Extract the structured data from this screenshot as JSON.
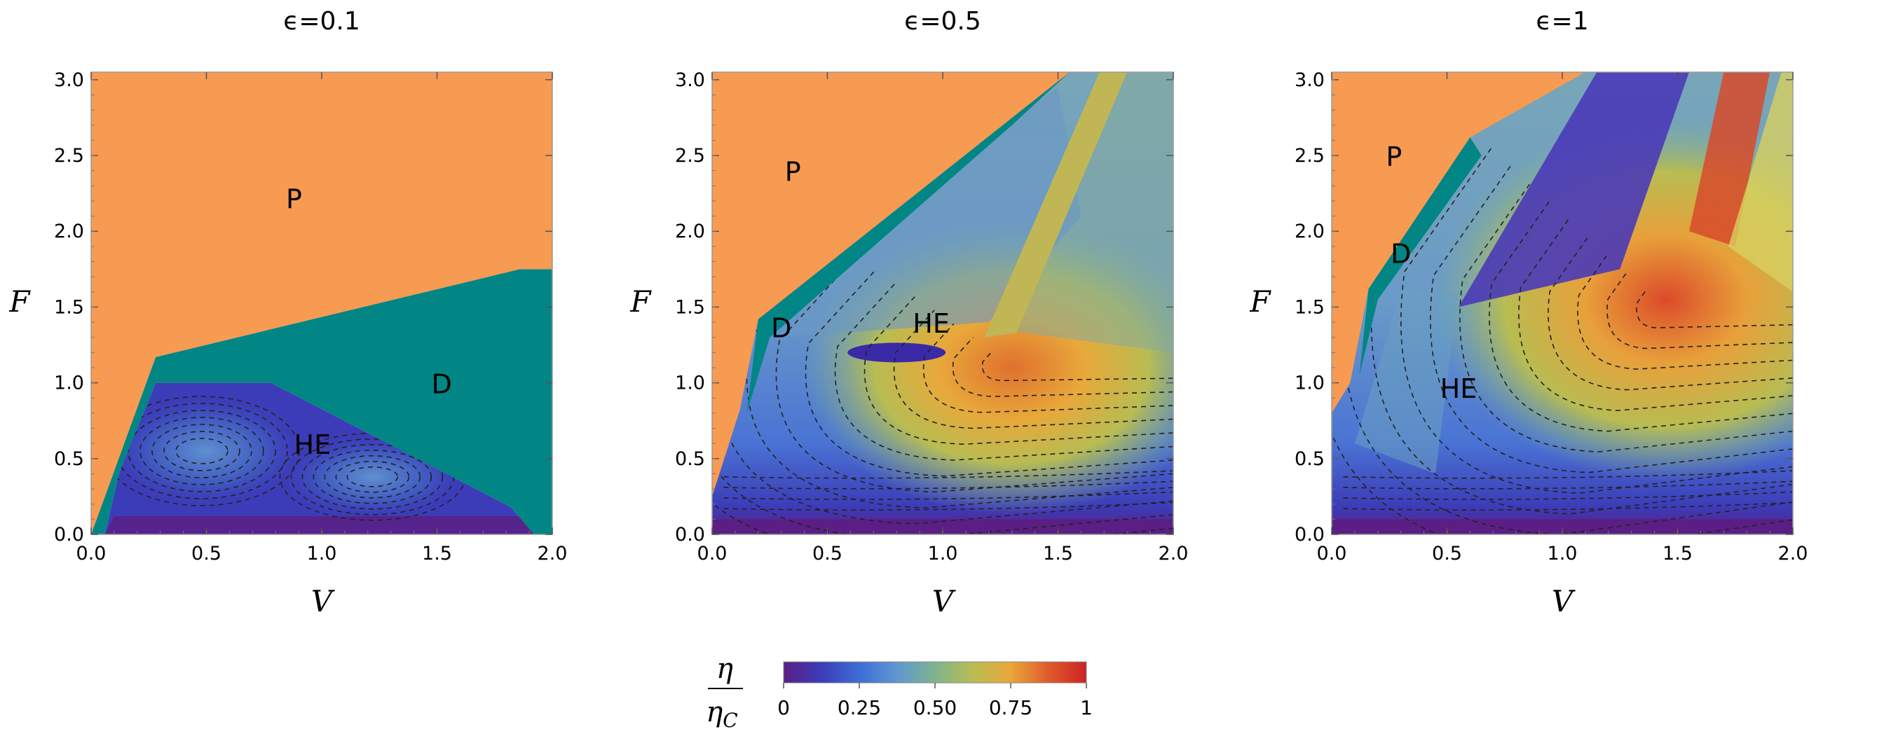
{
  "chart_data": [
    {
      "type": "heatmap",
      "title": "ϵ=0.1",
      "xlabel": "V",
      "ylabel": "F",
      "xlim": [
        0,
        2
      ],
      "ylim": [
        0,
        3.05
      ],
      "x_ticks": [
        "0.0",
        "0.5",
        "1.0",
        "1.5",
        "2.0"
      ],
      "y_ticks": [
        "0.0",
        "0.5",
        "1.0",
        "1.5",
        "2.0",
        "2.5",
        "3.0"
      ],
      "contour_lines": "dashed",
      "regions": [
        {
          "label": "P",
          "color": "#f79a52",
          "label_at": [
            0.88,
            2.2
          ],
          "boundary": [
            [
              0,
              0
            ],
            [
              0,
              3.05
            ],
            [
              2,
              3.05
            ],
            [
              2,
              1.75
            ],
            [
              1.86,
              1.75
            ],
            [
              0.28,
              1.17
            ],
            [
              0,
              0
            ]
          ]
        },
        {
          "label": "D",
          "color": "#028585",
          "label_at": [
            1.52,
            0.98
          ],
          "boundary": [
            [
              0,
              0
            ],
            [
              0.28,
              1.17
            ],
            [
              1.86,
              1.75
            ],
            [
              2,
              1.75
            ],
            [
              2,
              0
            ],
            [
              1.92,
              0
            ],
            [
              1.82,
              0.18
            ],
            [
              0.78,
              1.0
            ],
            [
              0.28,
              1.0
            ],
            [
              0.12,
              0.4
            ],
            [
              0.06,
              0
            ]
          ]
        },
        {
          "label": "HE",
          "label_at": [
            0.96,
            0.58
          ],
          "boundary": [
            [
              0.06,
              0
            ],
            [
              0.12,
              0.4
            ],
            [
              0.28,
              1.0
            ],
            [
              0.78,
              1.0
            ],
            [
              1.82,
              0.18
            ],
            [
              1.92,
              0
            ]
          ],
          "efficiency_range": [
            0,
            0.35
          ]
        }
      ]
    },
    {
      "type": "heatmap",
      "title": "ϵ=0.5",
      "xlabel": "V",
      "ylabel": "F",
      "xlim": [
        0,
        2
      ],
      "ylim": [
        0,
        3.05
      ],
      "x_ticks": [
        "0.0",
        "0.5",
        "1.0",
        "1.5",
        "2.0"
      ],
      "y_ticks": [
        "0.0",
        "0.5",
        "1.0",
        "1.5",
        "2.0",
        "2.5",
        "3.0"
      ],
      "contour_lines": "dashed",
      "regions": [
        {
          "label": "P",
          "color": "#f79a52",
          "label_at": [
            0.35,
            2.38
          ],
          "boundary": [
            [
              0,
              0.25
            ],
            [
              0,
              3.05
            ],
            [
              1.55,
              3.05
            ],
            [
              0.2,
              1.42
            ],
            [
              0.12,
              0.82
            ],
            [
              0,
              0.25
            ]
          ]
        },
        {
          "label": "D",
          "color": "#028585",
          "label_at": [
            0.3,
            1.35
          ],
          "boundary": [
            [
              0.2,
              1.42
            ],
            [
              1.55,
              3.05
            ],
            [
              1.3,
              2.7
            ],
            [
              0.25,
              1.3
            ],
            [
              0.15,
              0.8
            ]
          ]
        },
        {
          "label": "HE",
          "label_at": [
            0.95,
            1.38
          ],
          "efficiency_range": [
            0,
            0.85
          ]
        }
      ]
    },
    {
      "type": "heatmap",
      "title": "ϵ=1",
      "xlabel": "V",
      "ylabel": "F",
      "xlim": [
        0,
        2
      ],
      "ylim": [
        0,
        3.05
      ],
      "x_ticks": [
        "0.0",
        "0.5",
        "1.0",
        "1.5",
        "2.0"
      ],
      "y_ticks": [
        "0.0",
        "0.5",
        "1.0",
        "1.5",
        "2.0",
        "2.5",
        "3.0"
      ],
      "contour_lines": "dashed",
      "regions": [
        {
          "label": "P",
          "color": "#f79a52",
          "label_at": [
            0.27,
            2.48
          ],
          "boundary": [
            [
              0,
              0.8
            ],
            [
              0,
              3.05
            ],
            [
              1.1,
              3.05
            ],
            [
              0.6,
              2.62
            ],
            [
              0.16,
              1.62
            ],
            [
              0.08,
              1.0
            ]
          ]
        },
        {
          "label": "D",
          "color": "#028585",
          "label_at": [
            0.3,
            1.84
          ],
          "boundary": [
            [
              0.16,
              1.62
            ],
            [
              0.6,
              2.62
            ],
            [
              0.65,
              2.5
            ],
            [
              0.2,
              1.55
            ],
            [
              0.12,
              1.05
            ]
          ]
        },
        {
          "label": "HE",
          "label_at": [
            0.55,
            0.95
          ],
          "efficiency_range": [
            0,
            1
          ]
        }
      ]
    }
  ],
  "colorbar": {
    "label_numerator": "η",
    "label_denominator": "η",
    "label_denominator_subscript": "C",
    "ticks": [
      "0",
      "0.25",
      "0.50",
      "0.75",
      "1"
    ],
    "range": [
      0,
      1
    ],
    "colors": [
      "#5a1e84",
      "#3c3cb8",
      "#3d6ed6",
      "#5f97d0",
      "#80b48f",
      "#b8bc52",
      "#e8a83a",
      "#e05a2c",
      "#cc2222"
    ]
  }
}
